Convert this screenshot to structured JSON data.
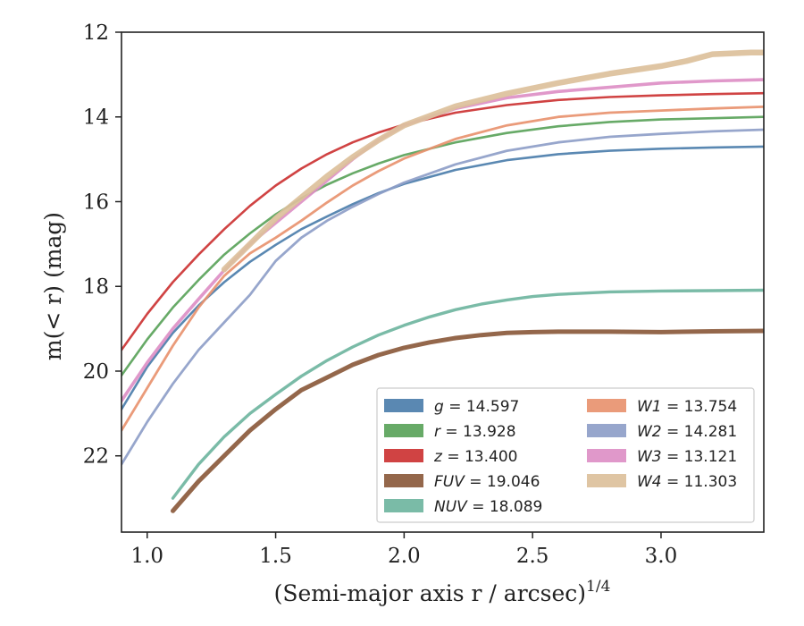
{
  "chart_data": {
    "type": "line",
    "xlabel": "(Semi-major axis r / arcsec)",
    "xlabel_exponent": "1/4",
    "ylabel": "m(< r) (mag)",
    "xlim": [
      0.9,
      3.4
    ],
    "ylim": [
      23.8,
      12
    ],
    "y_inverted": true,
    "grid": false,
    "legend_placement": "lower-right",
    "xticks": [
      "1.0",
      "1.5",
      "2.0",
      "2.5",
      "3.0"
    ],
    "yticks": [
      "12",
      "14",
      "16",
      "18",
      "20",
      "22"
    ],
    "series": [
      {
        "name": "g = 14.597",
        "band": "g",
        "mag": "14.597",
        "color": "#4c7eab",
        "x": [
          0.9,
          1.0,
          1.1,
          1.2,
          1.3,
          1.4,
          1.5,
          1.6,
          1.7,
          1.8,
          1.9,
          2.0,
          2.2,
          2.4,
          2.6,
          2.8,
          3.0,
          3.2,
          3.4
        ],
        "y": [
          20.9,
          19.9,
          19.1,
          18.45,
          17.9,
          17.42,
          17.02,
          16.65,
          16.35,
          16.06,
          15.8,
          15.58,
          15.25,
          15.02,
          14.88,
          14.8,
          14.75,
          14.72,
          14.7
        ]
      },
      {
        "name": "r = 13.928",
        "band": "r",
        "mag": "13.928",
        "color": "#5aa35a",
        "x": [
          0.9,
          1.0,
          1.1,
          1.2,
          1.3,
          1.4,
          1.5,
          1.6,
          1.7,
          1.8,
          1.9,
          2.0,
          2.2,
          2.4,
          2.6,
          2.8,
          3.0,
          3.2,
          3.4
        ],
        "y": [
          20.1,
          19.25,
          18.5,
          17.85,
          17.25,
          16.75,
          16.3,
          15.92,
          15.6,
          15.33,
          15.1,
          14.9,
          14.6,
          14.38,
          14.22,
          14.12,
          14.06,
          14.03,
          14.0
        ]
      },
      {
        "name": "z = 13.400",
        "band": "z",
        "mag": "13.400",
        "color": "#cc3333",
        "x": [
          0.9,
          1.0,
          1.1,
          1.2,
          1.3,
          1.4,
          1.5,
          1.6,
          1.7,
          1.8,
          1.9,
          2.0,
          2.2,
          2.4,
          2.6,
          2.8,
          3.0,
          3.2,
          3.4
        ],
        "y": [
          19.5,
          18.65,
          17.9,
          17.25,
          16.65,
          16.1,
          15.62,
          15.22,
          14.88,
          14.6,
          14.37,
          14.18,
          13.9,
          13.72,
          13.6,
          13.53,
          13.49,
          13.46,
          13.44
        ]
      },
      {
        "name": "FUV = 19.046",
        "band": "FUV",
        "mag": "19.046",
        "color": "#8b5a3c",
        "x": [
          1.1,
          1.2,
          1.3,
          1.4,
          1.5,
          1.6,
          1.7,
          1.8,
          1.9,
          2.0,
          2.1,
          2.2,
          2.3,
          2.4,
          2.5,
          2.6,
          2.8,
          3.0,
          3.2,
          3.4
        ],
        "y": [
          23.3,
          22.6,
          22.0,
          21.4,
          20.9,
          20.45,
          20.15,
          19.85,
          19.62,
          19.45,
          19.32,
          19.22,
          19.15,
          19.1,
          19.08,
          19.07,
          19.07,
          19.08,
          19.06,
          19.05
        ]
      },
      {
        "name": "NUV = 18.089",
        "band": "NUV",
        "mag": "18.089",
        "color": "#6fb5a0",
        "x": [
          1.1,
          1.2,
          1.3,
          1.4,
          1.5,
          1.6,
          1.7,
          1.8,
          1.9,
          2.0,
          2.1,
          2.2,
          2.3,
          2.4,
          2.5,
          2.6,
          2.8,
          3.0,
          3.2,
          3.4
        ],
        "y": [
          23.0,
          22.2,
          21.55,
          21.0,
          20.55,
          20.12,
          19.75,
          19.43,
          19.15,
          18.92,
          18.72,
          18.55,
          18.42,
          18.32,
          18.24,
          18.19,
          18.13,
          18.11,
          18.1,
          18.09
        ]
      },
      {
        "name": "W1 = 13.754",
        "band": "W1",
        "mag": "13.754",
        "color": "#e8926f",
        "x": [
          0.9,
          1.0,
          1.1,
          1.2,
          1.3,
          1.4,
          1.5,
          1.6,
          1.7,
          1.8,
          1.9,
          2.0,
          2.2,
          2.4,
          2.6,
          2.8,
          3.0,
          3.2,
          3.4
        ],
        "y": [
          21.4,
          20.4,
          19.4,
          18.5,
          17.75,
          17.22,
          16.85,
          16.45,
          16.02,
          15.62,
          15.28,
          14.98,
          14.52,
          14.2,
          14.0,
          13.9,
          13.85,
          13.8,
          13.76
        ]
      },
      {
        "name": "W2 = 14.281",
        "band": "W2",
        "mag": "14.281",
        "color": "#8e9ec8",
        "x": [
          0.9,
          1.0,
          1.1,
          1.2,
          1.3,
          1.4,
          1.5,
          1.6,
          1.7,
          1.8,
          1.9,
          2.0,
          2.2,
          2.4,
          2.6,
          2.8,
          3.0,
          3.2,
          3.4
        ],
        "y": [
          22.2,
          21.2,
          20.3,
          19.5,
          18.85,
          18.2,
          17.4,
          16.85,
          16.45,
          16.12,
          15.82,
          15.55,
          15.12,
          14.8,
          14.6,
          14.47,
          14.4,
          14.34,
          14.3
        ]
      },
      {
        "name": "W3 = 13.121",
        "band": "W3",
        "mag": "13.121",
        "color": "#dd8fc6",
        "x": [
          0.9,
          1.0,
          1.1,
          1.2,
          1.3,
          1.4,
          1.5,
          1.6,
          1.7,
          1.8,
          1.9,
          2.0,
          2.2,
          2.4,
          2.6,
          2.8,
          3.0,
          3.2,
          3.4
        ],
        "y": [
          20.7,
          19.8,
          19.0,
          18.3,
          17.62,
          17.0,
          16.5,
          16.0,
          15.5,
          15.0,
          14.55,
          14.2,
          13.8,
          13.55,
          13.4,
          13.3,
          13.2,
          13.15,
          13.12
        ]
      },
      {
        "name": "W4 = 11.303",
        "band": "W4",
        "mag": "11.303",
        "color": "#dcc09b",
        "x": [
          1.3,
          1.4,
          1.5,
          1.6,
          1.7,
          1.8,
          1.9,
          2.0,
          2.2,
          2.4,
          2.6,
          2.8,
          3.0,
          3.1,
          3.2,
          3.35,
          3.4
        ],
        "y": [
          17.6,
          17.0,
          16.4,
          15.9,
          15.4,
          14.95,
          14.55,
          14.2,
          13.75,
          13.45,
          13.2,
          12.98,
          12.8,
          12.68,
          12.52,
          12.48,
          12.48
        ]
      }
    ]
  }
}
